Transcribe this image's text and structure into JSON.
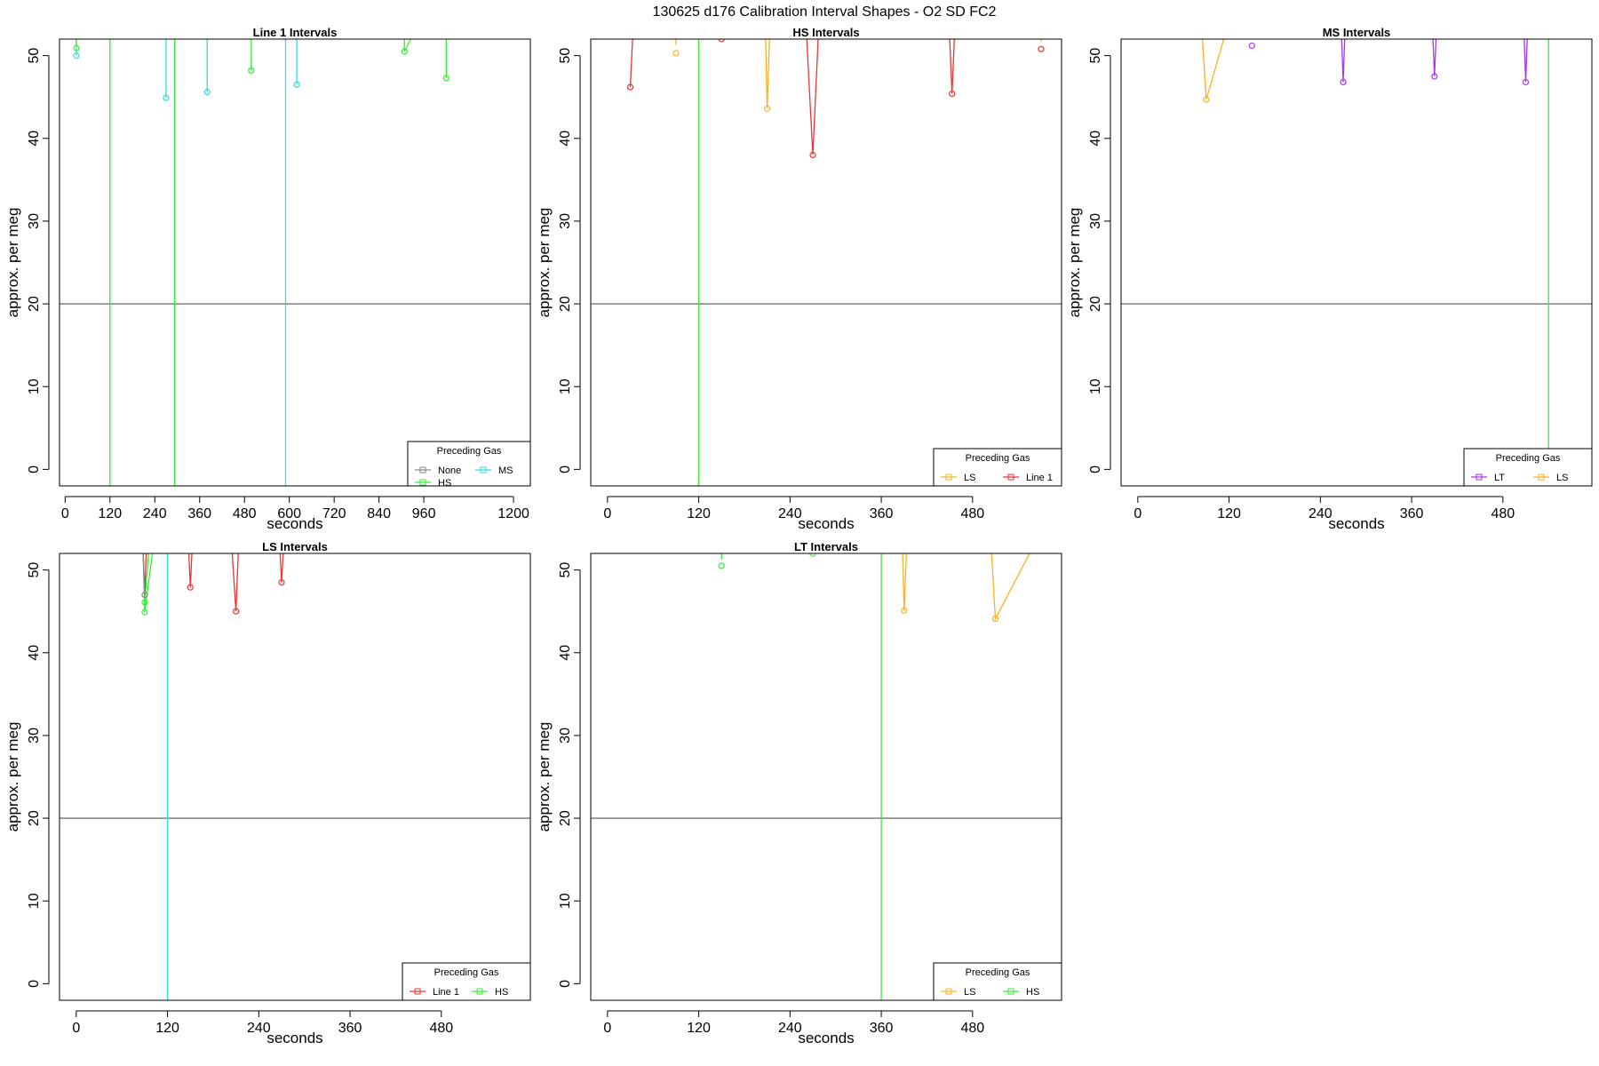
{
  "figure": {
    "title": "130625   d176   Calibration Interval Shapes - O2 SD FC2"
  },
  "colors": {
    "None": "#888888",
    "HS": "#33ee33",
    "MS": "#33dddd",
    "LS": "#ffb020",
    "Line 1": "#ee3333",
    "LT": "#aa33ee",
    "axis": "#000000",
    "hline": "#555555"
  },
  "chart_data": [
    {
      "type": "line",
      "title": "Line 1 Intervals",
      "xlabel": "seconds",
      "ylabel": "approx. per meg",
      "xlim": [
        -15,
        1245
      ],
      "ylim": [
        -2,
        52
      ],
      "xticks": [
        0,
        120,
        240,
        360,
        480,
        600,
        720,
        840,
        960,
        1200
      ],
      "yticks": [
        0,
        10,
        20,
        30,
        40,
        50
      ],
      "hline": 20,
      "legend": {
        "title": "Preceding Gas",
        "entries": [
          "None",
          "HS",
          "MS"
        ],
        "position": "bottom-right"
      },
      "series": [
        {
          "name": "MS",
          "x": [
            30,
            30
          ],
          "y": [
            52,
            50
          ]
        },
        {
          "name": "HS",
          "x": [
            30,
            30
          ],
          "y": [
            52,
            50.9
          ]
        },
        {
          "name": "HS",
          "x": [
            120,
            120
          ],
          "y": [
            -2,
            52
          ]
        },
        {
          "name": "MS",
          "x": [
            270,
            270
          ],
          "y": [
            52,
            44.9
          ]
        },
        {
          "name": "HS",
          "x": [
            293,
            293
          ],
          "y": [
            -2,
            52
          ]
        },
        {
          "name": "MS",
          "x": [
            380,
            380
          ],
          "y": [
            52,
            45.6
          ]
        },
        {
          "name": "HS",
          "x": [
            498,
            498
          ],
          "y": [
            52,
            48.2
          ]
        },
        {
          "name": "MS",
          "x": [
            590,
            590
          ],
          "y": [
            -2,
            52
          ]
        },
        {
          "name": "MS",
          "x": [
            620,
            620
          ],
          "y": [
            52,
            46.5
          ]
        },
        {
          "name": "HS",
          "x": [
            908,
            908,
            925
          ],
          "y": [
            52,
            50.5,
            52
          ]
        },
        {
          "name": "HS",
          "x": [
            1020,
            1020
          ],
          "y": [
            52,
            47.3
          ]
        }
      ],
      "points": [
        {
          "name": "MS",
          "x": 30,
          "y": 50
        },
        {
          "name": "HS",
          "x": 30,
          "y": 50.9
        },
        {
          "name": "MS",
          "x": 270,
          "y": 44.9
        },
        {
          "name": "MS",
          "x": 380,
          "y": 45.6
        },
        {
          "name": "HS",
          "x": 498,
          "y": 48.2
        },
        {
          "name": "MS",
          "x": 620,
          "y": 46.5
        },
        {
          "name": "HS",
          "x": 908,
          "y": 50.5
        },
        {
          "name": "HS",
          "x": 1020,
          "y": 47.3
        }
      ]
    },
    {
      "type": "line",
      "title": "HS Intervals",
      "xlabel": "seconds",
      "ylabel": "approx. per meg",
      "xlim": [
        -22,
        597
      ],
      "ylim": [
        -2,
        52
      ],
      "xticks": [
        0,
        120,
        240,
        360,
        480
      ],
      "yticks": [
        0,
        10,
        20,
        30,
        40,
        50
      ],
      "hline": 20,
      "legend": {
        "title": "Preceding Gas",
        "entries": [
          "LS",
          "Line 1"
        ],
        "position": "bottom-right"
      },
      "series": [
        {
          "name": "Line 1",
          "x": [
            30,
            33
          ],
          "y": [
            46.2,
            52
          ]
        },
        {
          "name": "LS",
          "x": [
            90,
            90
          ],
          "y": [
            51.3,
            52
          ]
        },
        {
          "name": "HS",
          "x": [
            120,
            120
          ],
          "y": [
            -2,
            52
          ]
        },
        {
          "name": "LS",
          "x": [
            208,
            210,
            213
          ],
          "y": [
            52,
            43.6,
            52
          ]
        },
        {
          "name": "Line 1",
          "x": [
            262,
            270,
            277
          ],
          "y": [
            52,
            38,
            52
          ]
        },
        {
          "name": "Line 1",
          "x": [
            450,
            453,
            456
          ],
          "y": [
            52,
            45.4,
            52
          ]
        },
        {
          "name": "LS",
          "x": [
            570,
            570
          ],
          "y": [
            51.7,
            52
          ]
        }
      ],
      "points": [
        {
          "name": "Line 1",
          "x": 30,
          "y": 46.2
        },
        {
          "name": "LS",
          "x": 90,
          "y": 50.3
        },
        {
          "name": "Line 1",
          "x": 150,
          "y": 52
        },
        {
          "name": "LS",
          "x": 210,
          "y": 43.6
        },
        {
          "name": "Line 1",
          "x": 270,
          "y": 38
        },
        {
          "name": "Line 1",
          "x": 453,
          "y": 45.4
        },
        {
          "name": "Line 1",
          "x": 570,
          "y": 50.8
        }
      ]
    },
    {
      "type": "line",
      "title": "MS Intervals",
      "xlabel": "seconds",
      "ylabel": "approx. per meg",
      "xlim": [
        -22,
        597
      ],
      "ylim": [
        -2,
        52
      ],
      "xticks": [
        0,
        120,
        240,
        360,
        480
      ],
      "yticks": [
        0,
        10,
        20,
        30,
        40,
        50
      ],
      "hline": 20,
      "legend": {
        "title": "Preceding Gas",
        "entries": [
          "LT",
          "LS"
        ],
        "position": "bottom-right"
      },
      "series": [
        {
          "name": "LS",
          "x": [
            85,
            90,
            113
          ],
          "y": [
            52,
            44.7,
            52
          ]
        },
        {
          "name": "LT",
          "x": [
            268,
            270,
            272
          ],
          "y": [
            52,
            46.8,
            52
          ]
        },
        {
          "name": "LT",
          "x": [
            388,
            390,
            392
          ],
          "y": [
            52,
            47.5,
            52
          ]
        },
        {
          "name": "LT",
          "x": [
            508,
            510,
            512
          ],
          "y": [
            52,
            46.8,
            52
          ]
        },
        {
          "name": "HS",
          "x": [
            540,
            540
          ],
          "y": [
            -2,
            52
          ]
        }
      ],
      "points": [
        {
          "name": "LS",
          "x": 90,
          "y": 44.7
        },
        {
          "name": "LT",
          "x": 150,
          "y": 51.2
        },
        {
          "name": "LT",
          "x": 270,
          "y": 46.8
        },
        {
          "name": "LT",
          "x": 390,
          "y": 47.5
        },
        {
          "name": "LT",
          "x": 510,
          "y": 46.8
        }
      ]
    },
    {
      "type": "line",
      "title": "LS Intervals",
      "xlabel": "seconds",
      "ylabel": "approx. per meg",
      "xlim": [
        -22,
        597
      ],
      "ylim": [
        -2,
        52
      ],
      "xticks": [
        0,
        120,
        240,
        360,
        480
      ],
      "yticks": [
        0,
        10,
        20,
        30,
        40,
        50
      ],
      "hline": 20,
      "legend": {
        "title": "Preceding Gas",
        "entries": [
          "Line 1",
          "HS"
        ],
        "position": "bottom-right"
      },
      "series": [
        {
          "name": "HS",
          "x": [
            88,
            90,
            100
          ],
          "y": [
            52,
            44.9,
            52
          ]
        },
        {
          "name": "HS",
          "x": [
            88,
            90,
            95
          ],
          "y": [
            52,
            46.1,
            52
          ]
        },
        {
          "name": "Line 1",
          "x": [
            88,
            90,
            92
          ],
          "y": [
            52,
            47,
            52
          ]
        },
        {
          "name": "None",
          "x": [
            88,
            90
          ],
          "y": [
            52,
            47
          ]
        },
        {
          "name": "MS",
          "x": [
            120,
            120
          ],
          "y": [
            -2,
            52
          ]
        },
        {
          "name": "Line 1",
          "x": [
            148,
            150,
            152
          ],
          "y": [
            52,
            47.9,
            52
          ]
        },
        {
          "name": "Line 1",
          "x": [
            205,
            210,
            213
          ],
          "y": [
            52,
            45,
            52
          ]
        },
        {
          "name": "Line 1",
          "x": [
            268,
            270,
            272
          ],
          "y": [
            52,
            48.5,
            52
          ]
        }
      ],
      "points": [
        {
          "name": "HS",
          "x": 90,
          "y": 44.9
        },
        {
          "name": "HS",
          "x": 90,
          "y": 46.1
        },
        {
          "name": "None",
          "x": 90,
          "y": 47
        },
        {
          "name": "Line 1",
          "x": 150,
          "y": 47.9
        },
        {
          "name": "Line 1",
          "x": 210,
          "y": 45
        },
        {
          "name": "Line 1",
          "x": 270,
          "y": 48.5
        }
      ]
    },
    {
      "type": "line",
      "title": "LT Intervals",
      "xlabel": "seconds",
      "ylabel": "approx. per meg",
      "xlim": [
        -22,
        597
      ],
      "ylim": [
        -2,
        52
      ],
      "xticks": [
        0,
        120,
        240,
        360,
        480
      ],
      "yticks": [
        0,
        10,
        20,
        30,
        40,
        50
      ],
      "hline": 20,
      "legend": {
        "title": "Preceding Gas",
        "entries": [
          "LS",
          "HS"
        ],
        "position": "bottom-right"
      },
      "series": [
        {
          "name": "HS",
          "x": [
            150,
            150
          ],
          "y": [
            51.3,
            52
          ]
        },
        {
          "name": "HS",
          "x": [
            270,
            270
          ],
          "y": [
            52,
            52
          ]
        },
        {
          "name": "HS",
          "x": [
            360,
            360
          ],
          "y": [
            -2,
            52
          ]
        },
        {
          "name": "LS",
          "x": [
            388,
            390,
            393
          ],
          "y": [
            52,
            45.1,
            52
          ]
        },
        {
          "name": "LS",
          "x": [
            505,
            510,
            555
          ],
          "y": [
            52,
            44.1,
            52
          ]
        }
      ],
      "points": [
        {
          "name": "HS",
          "x": 150,
          "y": 50.5
        },
        {
          "name": "HS",
          "x": 270,
          "y": 52
        },
        {
          "name": "LS",
          "x": 390,
          "y": 45.1
        },
        {
          "name": "LS",
          "x": 510,
          "y": 44.1
        }
      ]
    }
  ]
}
